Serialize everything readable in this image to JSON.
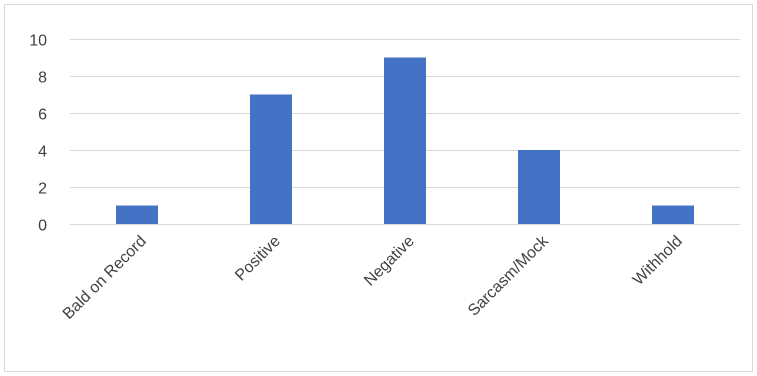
{
  "chart_data": {
    "type": "bar",
    "categories": [
      "Bald on Record",
      "Positive",
      "Negative",
      "Sarcasm/Mock",
      "Withhold"
    ],
    "values": [
      1,
      7,
      9,
      4,
      1
    ],
    "ylim": [
      0,
      10
    ],
    "yticks": [
      0,
      2,
      4,
      6,
      8,
      10
    ],
    "title": "",
    "xlabel": "",
    "ylabel": "",
    "grid": true,
    "legend": "none",
    "colors": {
      "bar": "#4472C4",
      "grid": "#D9D9D9",
      "frame": "#D9D9D9",
      "text": "#404040"
    }
  }
}
